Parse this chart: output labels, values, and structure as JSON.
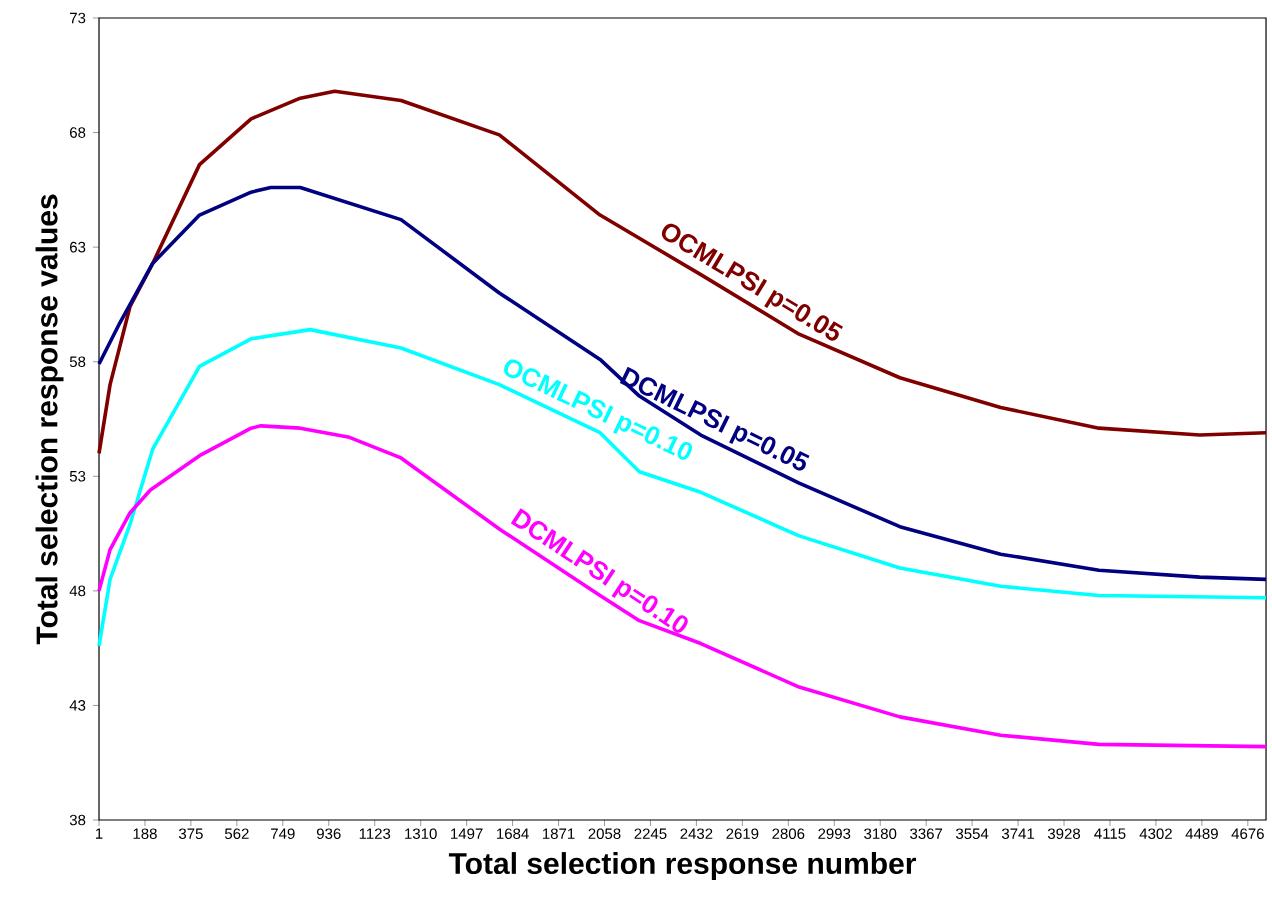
{
  "chart_data": {
    "type": "line",
    "xlabel": "Total selection response number",
    "ylabel": "Total selection response values",
    "xlim": [
      1,
      4750
    ],
    "xticks": [
      1,
      188,
      375,
      562,
      749,
      936,
      1123,
      1310,
      1497,
      1684,
      1871,
      2058,
      2245,
      2432,
      2619,
      2806,
      2993,
      3180,
      3367,
      3554,
      3741,
      3928,
      4115,
      4302,
      4489,
      4676
    ],
    "ylim": [
      38,
      73
    ],
    "yticks": [
      38,
      43,
      48,
      53,
      58,
      63,
      68,
      73
    ],
    "grid": false,
    "legend": false,
    "marker": "none",
    "line_style": "solid",
    "series": [
      {
        "name": "OCMLPSI p=0.05",
        "color": "#800000",
        "x": [
          1,
          46,
          127,
          220,
          410,
          620,
          820,
          960,
          1230,
          1630,
          2040,
          2450,
          2850,
          3260,
          3670,
          4070,
          4480,
          4750
        ],
        "values": [
          54.0,
          57.0,
          60.4,
          62.3,
          66.6,
          68.6,
          69.5,
          69.8,
          69.4,
          67.9,
          64.4,
          61.8,
          59.2,
          57.3,
          56.0,
          55.1,
          54.8,
          54.9
        ]
      },
      {
        "name": "DCMLPSI p=0.05",
        "color": "#000080",
        "x": [
          1,
          86,
          220,
          410,
          620,
          700,
          820,
          1230,
          1630,
          2040,
          2200,
          2450,
          2850,
          3260,
          3670,
          4070,
          4480,
          4750
        ],
        "values": [
          57.9,
          59.7,
          62.3,
          64.4,
          65.4,
          65.6,
          65.6,
          64.2,
          61.0,
          58.1,
          56.5,
          54.8,
          52.7,
          50.8,
          49.6,
          48.9,
          48.6,
          48.5
        ]
      },
      {
        "name": "OCMLPSI p=0.10",
        "color": "#00ffff",
        "x": [
          1,
          46,
          127,
          220,
          410,
          620,
          860,
          1230,
          1630,
          2040,
          2200,
          2450,
          2850,
          3260,
          3670,
          4070,
          4750
        ],
        "values": [
          45.6,
          48.5,
          50.9,
          54.2,
          57.8,
          59.0,
          59.4,
          58.6,
          57.0,
          54.9,
          53.2,
          52.3,
          50.4,
          49.0,
          48.2,
          47.8,
          47.7
        ]
      },
      {
        "name": "DCMLPSI p=0.10",
        "color": "#ff00ff",
        "x": [
          1,
          46,
          127,
          210,
          410,
          620,
          660,
          820,
          1020,
          1230,
          1630,
          2040,
          2200,
          2450,
          2850,
          3260,
          3670,
          4070,
          4750
        ],
        "values": [
          48.0,
          49.8,
          51.4,
          52.4,
          53.9,
          55.1,
          55.2,
          55.1,
          54.7,
          53.8,
          50.7,
          47.8,
          46.7,
          45.7,
          43.8,
          42.5,
          41.7,
          41.3,
          41.2
        ]
      }
    ]
  }
}
